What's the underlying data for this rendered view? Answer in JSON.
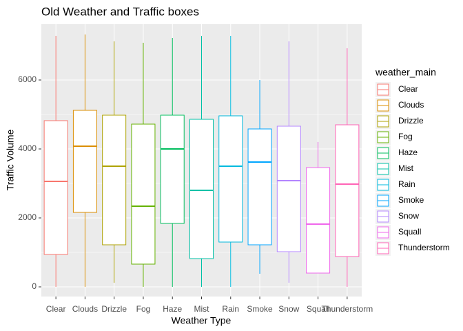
{
  "chart_data": {
    "type": "box",
    "title": "Old Weather and Traffic boxes",
    "x_label": "Weather Type",
    "y_label": "Traffic Volume",
    "legend_title": "weather_main",
    "categories": [
      "Clear",
      "Clouds",
      "Drizzle",
      "Fog",
      "Haze",
      "Mist",
      "Rain",
      "Smoke",
      "Snow",
      "Squall",
      "Thunderstorm"
    ],
    "colors": [
      "#F8766D",
      "#DB8E00",
      "#AEA200",
      "#64B200",
      "#00BD5C",
      "#00C1A7",
      "#00BADE",
      "#00A6FF",
      "#B385FF",
      "#EF67EB",
      "#FF63B6"
    ],
    "min": [
      0,
      0,
      120,
      0,
      0,
      0,
      0,
      380,
      120,
      400,
      0
    ],
    "q1": [
      940,
      2160,
      1220,
      660,
      1840,
      820,
      1300,
      1220,
      1020,
      400,
      880
    ],
    "median": [
      3060,
      4080,
      3500,
      2340,
      4000,
      2800,
      3500,
      3620,
      3080,
      1820,
      2980
    ],
    "q3": [
      4820,
      5120,
      4980,
      4720,
      4980,
      4860,
      4960,
      4580,
      4660,
      3460,
      4700
    ],
    "max": [
      7280,
      7320,
      7120,
      7080,
      7220,
      7280,
      7280,
      6000,
      7120,
      4200,
      6920
    ],
    "ylim": [
      -280,
      7620
    ],
    "yticks": [
      0,
      2000,
      4000,
      6000
    ],
    "grid": true,
    "legend": "right"
  }
}
